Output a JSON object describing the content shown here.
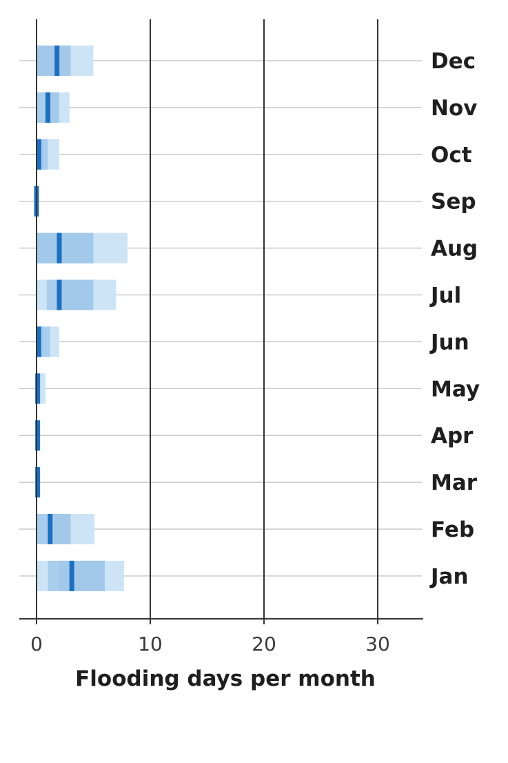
{
  "chart_data": {
    "type": "bar",
    "orientation": "horizontal",
    "xlabel": "Flooding days per month",
    "xlim": [
      0,
      32
    ],
    "xticks": [
      0,
      10,
      20,
      30
    ],
    "xtick_labels": [
      "0",
      "10",
      "20",
      "30"
    ],
    "grid": true,
    "categories": [
      "Dec",
      "Nov",
      "Oct",
      "Sep",
      "Aug",
      "Jul",
      "Jun",
      "May",
      "Apr",
      "Mar",
      "Feb",
      "Jan"
    ],
    "series": [
      {
        "values": [
          [
            0,
            5
          ],
          [
            0,
            2.9
          ],
          [
            0,
            2
          ],
          [
            0,
            0
          ],
          [
            0,
            8
          ],
          [
            0,
            7
          ],
          [
            0,
            2
          ],
          [
            0,
            0.8
          ],
          [
            0,
            0
          ],
          [
            0,
            0
          ],
          [
            0,
            5.1
          ],
          [
            0,
            7.7
          ]
        ]
      },
      {
        "values": [
          [
            0,
            3
          ],
          [
            0,
            2
          ],
          [
            0.2,
            1
          ],
          [
            0,
            0
          ],
          [
            0,
            5
          ],
          [
            0.9,
            5
          ],
          [
            0,
            1.2
          ],
          [
            0,
            0
          ],
          [
            0,
            0
          ],
          [
            0,
            0
          ],
          [
            0,
            3
          ],
          [
            1,
            6
          ]
        ]
      },
      {
        "values": [
          [
            0,
            3
          ],
          [
            0.9,
            2
          ],
          [
            0.2,
            0.6
          ],
          [
            0,
            0
          ],
          [
            0,
            5
          ],
          [
            1.8,
            5
          ],
          [
            0,
            0.6
          ],
          [
            0,
            0
          ],
          [
            0,
            0
          ],
          [
            0,
            0
          ],
          [
            1.5,
            3
          ],
          [
            2,
            6
          ]
        ]
      },
      {
        "values": [
          1.8,
          1,
          0.2,
          0,
          2,
          2,
          0.2,
          0.1,
          0.1,
          0.1,
          1.2,
          3.1
        ]
      }
    ],
    "colors": {
      "outer_range": "#cde4f7",
      "middle_range": "#a9cdec",
      "inner_range": "#a2c9ea",
      "median": "#1f6fbf",
      "grid": "#c9c9c9",
      "axis": "#333333"
    }
  }
}
